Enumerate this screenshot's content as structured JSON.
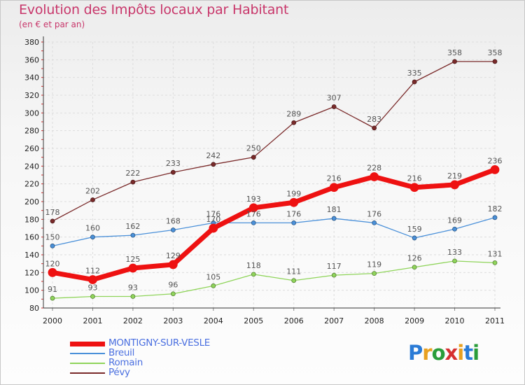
{
  "header": {
    "title": "Evolution des Impôts locaux par Habitant",
    "subtitle": "(en € et par an)"
  },
  "logo": {
    "text": "Proxiti",
    "colors": [
      "#2a7bd6",
      "#e8a020",
      "#2a9d3a",
      "#d63030",
      "#e8a020",
      "#2a7bd6",
      "#2a9d3a"
    ]
  },
  "colors": {
    "title": "#c8366a",
    "legend_text": "#4a6fe0"
  },
  "chart_data": {
    "type": "line",
    "x": [
      "2000",
      "2001",
      "2002",
      "2003",
      "2004",
      "2005",
      "2006",
      "2007",
      "2008",
      "2009",
      "2010",
      "2011"
    ],
    "ylim": [
      80,
      380
    ],
    "yticks": [
      80,
      100,
      120,
      140,
      160,
      180,
      200,
      220,
      240,
      260,
      280,
      300,
      320,
      340,
      360,
      380
    ],
    "grid": true,
    "legend_position": "bottom-left",
    "series": [
      {
        "name": "Pévy",
        "color": "#7a2a2a",
        "values": [
          178,
          202,
          222,
          233,
          242,
          250,
          289,
          307,
          283,
          335,
          358,
          358
        ],
        "labels": [
          "178",
          "202",
          "222",
          "233",
          "242",
          "250",
          "289",
          "307",
          "283",
          "335",
          "358",
          "358"
        ]
      },
      {
        "name": "Breuil",
        "color": "#4a90d9",
        "values": [
          150,
          160,
          162,
          168,
          176,
          176,
          176,
          181,
          176,
          159,
          169,
          182
        ],
        "labels": [
          "150",
          "160",
          "162",
          "168",
          "176",
          "176",
          "176",
          "181",
          "176",
          "159",
          "169",
          "182"
        ]
      },
      {
        "name": "Romain",
        "color": "#8fd45a",
        "values": [
          91,
          93,
          93,
          96,
          105,
          118,
          111,
          117,
          119,
          126,
          133,
          131
        ],
        "labels": [
          "91",
          "93",
          "93",
          "96",
          "105",
          "118",
          "111",
          "117",
          "119",
          "126",
          "133",
          "131"
        ]
      },
      {
        "name": "MONTIGNY-SUR-VESLE",
        "color": "#ee1111",
        "values": [
          120,
          112,
          125,
          129,
          170,
          193,
          199,
          216,
          228,
          216,
          219,
          236
        ],
        "labels": [
          "120",
          "112",
          "125",
          "129",
          "170",
          "193",
          "199",
          "216",
          "228",
          "216",
          "219",
          "236"
        ]
      }
    ],
    "legend": [
      "MONTIGNY-SUR-VESLE",
      "Breuil",
      "Romain",
      "Pévy"
    ]
  }
}
